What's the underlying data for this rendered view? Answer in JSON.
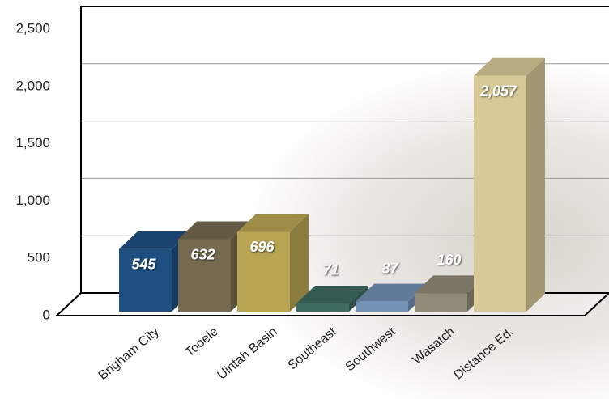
{
  "chart_data": {
    "type": "bar3d",
    "categories": [
      "Brigham City",
      "Tooele",
      "Uintah Basin",
      "Southeast",
      "Southwest",
      "Wasatch",
      "Distance Ed."
    ],
    "values": [
      545,
      632,
      696,
      71,
      87,
      160,
      2057
    ],
    "value_labels": [
      "545",
      "632",
      "696",
      "71",
      "87",
      "160",
      "2,057"
    ],
    "colors": [
      "#1f4f80",
      "#756a4f",
      "#b7a552",
      "#3d6b5f",
      "#7390b5",
      "#928a78",
      "#d7c998"
    ],
    "ylim": [
      0,
      2500
    ],
    "yticks": [
      0,
      500,
      {
        "value": 1000,
        "label": "1,000"
      },
      {
        "value": 1500,
        "label": "1,500"
      },
      {
        "value": 2000,
        "label": "2,000"
      },
      {
        "value": 2500,
        "label": "2,500"
      }
    ],
    "grid": true
  }
}
